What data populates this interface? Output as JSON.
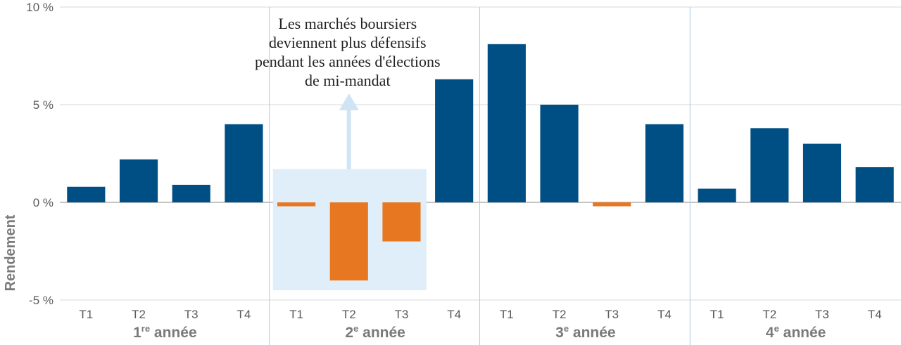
{
  "chart_data": {
    "type": "bar",
    "ylabel": "Rendement",
    "ylim": [
      -5,
      10
    ],
    "yticks": [
      {
        "value": 10,
        "label": "10 %"
      },
      {
        "value": 5,
        "label": "5 %"
      },
      {
        "value": 0,
        "label": "0 %"
      },
      {
        "value": -5,
        "label": "-5 %"
      }
    ],
    "groups": [
      {
        "label": "1",
        "sup": "re",
        "rest": " année",
        "quarters": [
          "T1",
          "T2",
          "T3",
          "T4"
        ],
        "values": [
          0.8,
          2.2,
          0.9,
          4.0
        ]
      },
      {
        "label": "2",
        "sup": "e",
        "rest": " année",
        "quarters": [
          "T1",
          "T2",
          "T3",
          "T4"
        ],
        "values": [
          -0.2,
          -4.0,
          -2.0,
          6.3
        ]
      },
      {
        "label": "3",
        "sup": "e",
        "rest": " année",
        "quarters": [
          "T1",
          "T2",
          "T3",
          "T4"
        ],
        "values": [
          8.1,
          5.0,
          -0.2,
          4.0
        ]
      },
      {
        "label": "4",
        "sup": "e",
        "rest": " année",
        "quarters": [
          "T1",
          "T2",
          "T3",
          "T4"
        ],
        "values": [
          0.7,
          3.8,
          3.0,
          1.8
        ]
      }
    ],
    "annotation": {
      "lines": [
        "Les marchés boursiers",
        "deviennent plus défensifs",
        "pendant les années d'élections",
        "de mi-mandat"
      ]
    },
    "colors": {
      "positive": "#004f84",
      "negative": "#e87722",
      "highlight": "#dfeef8",
      "arrow": "#cfe4f4",
      "grid": "#d8d8d8",
      "divider": "#a8cfe6"
    },
    "grid": true
  }
}
